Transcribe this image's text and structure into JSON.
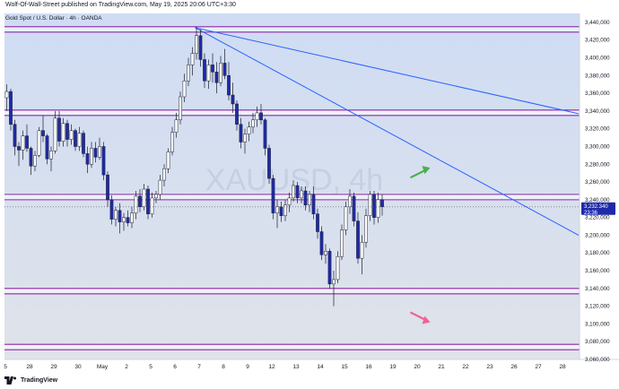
{
  "header": {
    "published_line": "Wolf-Of-Wall-Street published on TradingView.com, May 19, 2025 20:06 UTC+3:30",
    "symbol_line": "Gold Spot / U.S. Dollar · 4h · OANDA"
  },
  "watermark": "XAUUSD, 4h",
  "footer": {
    "brand": "TradingView",
    "logo_icon": "tradingview-logo-icon"
  },
  "price_label": {
    "value": "3,232.340",
    "countdown": "23:36"
  },
  "colors": {
    "background_top": "#cfdcf3",
    "background_bottom": "#dfe3ea",
    "up_candle": "#ffffff",
    "down_candle": "#1f2aa8",
    "wick": "#1b1f2e",
    "level_line": "#8e24aa",
    "trend_line": "#2962ff",
    "up_arrow": "#4caf50",
    "down_arrow": "#f06292"
  },
  "chart_data": {
    "type": "candlestick",
    "title": "",
    "ylim": [
      3060,
      3450
    ],
    "y_ticks": [
      "3,440,000",
      "3,420,000",
      "3,400,000",
      "3,380,000",
      "3,360,000",
      "3,340,000",
      "3,320,000",
      "3,300,000",
      "3,280,000",
      "3,260,000",
      "3,240,000",
      "3,220,000",
      "3,200,000",
      "3,180,000",
      "3,160,000",
      "3,140,000",
      "3,120,000",
      "3,100,000",
      "3,080,000",
      "3,060,000"
    ],
    "y_tick_values": [
      3440,
      3420,
      3400,
      3380,
      3360,
      3340,
      3320,
      3300,
      3280,
      3260,
      3240,
      3220,
      3200,
      3180,
      3160,
      3140,
      3120,
      3100,
      3080,
      3060
    ],
    "x_ticks": [
      "5",
      "28",
      "29",
      "30",
      "May",
      "2",
      "5",
      "6",
      "7",
      "8",
      "9",
      "12",
      "13",
      "14",
      "15",
      "16",
      "19",
      "20",
      "21",
      "22",
      "23",
      "26",
      "27",
      "28"
    ],
    "x_tick_slots": [
      0,
      6,
      12,
      18,
      24,
      30,
      36,
      42,
      48,
      54,
      60,
      66,
      72,
      78,
      84,
      90,
      96,
      102,
      108,
      114,
      120,
      126,
      132,
      138
    ],
    "horizontal_levels": [
      3432,
      3338,
      3243,
      3137,
      3074
    ],
    "trend_lines": [
      {
        "from": {
          "slot": 47,
          "price": 3434
        },
        "to": {
          "slot": 142,
          "price": 3337
        }
      },
      {
        "from": {
          "slot": 47,
          "price": 3434
        },
        "to": {
          "slot": 142,
          "price": 3200
        }
      }
    ],
    "arrows": [
      {
        "direction": "up",
        "slot": 103,
        "price": 3272
      },
      {
        "direction": "down",
        "slot": 103,
        "price": 3107
      }
    ],
    "candles": [
      {
        "o": 3355,
        "h": 3370,
        "l": 3340,
        "c": 3362
      },
      {
        "o": 3362,
        "h": 3365,
        "l": 3318,
        "c": 3325
      },
      {
        "o": 3325,
        "h": 3330,
        "l": 3290,
        "c": 3300
      },
      {
        "o": 3300,
        "h": 3305,
        "l": 3278,
        "c": 3296
      },
      {
        "o": 3296,
        "h": 3318,
        "l": 3285,
        "c": 3312
      },
      {
        "o": 3312,
        "h": 3325,
        "l": 3294,
        "c": 3298
      },
      {
        "o": 3298,
        "h": 3300,
        "l": 3268,
        "c": 3278
      },
      {
        "o": 3278,
        "h": 3295,
        "l": 3272,
        "c": 3290
      },
      {
        "o": 3290,
        "h": 3322,
        "l": 3288,
        "c": 3318
      },
      {
        "o": 3318,
        "h": 3335,
        "l": 3305,
        "c": 3312
      },
      {
        "o": 3312,
        "h": 3314,
        "l": 3280,
        "c": 3286
      },
      {
        "o": 3286,
        "h": 3300,
        "l": 3272,
        "c": 3295
      },
      {
        "o": 3295,
        "h": 3340,
        "l": 3292,
        "c": 3332
      },
      {
        "o": 3332,
        "h": 3340,
        "l": 3300,
        "c": 3306
      },
      {
        "o": 3306,
        "h": 3332,
        "l": 3300,
        "c": 3326
      },
      {
        "o": 3326,
        "h": 3330,
        "l": 3300,
        "c": 3308
      },
      {
        "o": 3308,
        "h": 3325,
        "l": 3302,
        "c": 3318
      },
      {
        "o": 3318,
        "h": 3320,
        "l": 3295,
        "c": 3300
      },
      {
        "o": 3300,
        "h": 3322,
        "l": 3295,
        "c": 3315
      },
      {
        "o": 3315,
        "h": 3318,
        "l": 3288,
        "c": 3292
      },
      {
        "o": 3292,
        "h": 3300,
        "l": 3270,
        "c": 3280
      },
      {
        "o": 3280,
        "h": 3305,
        "l": 3276,
        "c": 3298
      },
      {
        "o": 3298,
        "h": 3305,
        "l": 3282,
        "c": 3288
      },
      {
        "o": 3288,
        "h": 3310,
        "l": 3285,
        "c": 3300
      },
      {
        "o": 3300,
        "h": 3305,
        "l": 3262,
        "c": 3268
      },
      {
        "o": 3268,
        "h": 3272,
        "l": 3232,
        "c": 3240
      },
      {
        "o": 3240,
        "h": 3245,
        "l": 3212,
        "c": 3218
      },
      {
        "o": 3218,
        "h": 3232,
        "l": 3210,
        "c": 3228
      },
      {
        "o": 3228,
        "h": 3236,
        "l": 3202,
        "c": 3215
      },
      {
        "o": 3215,
        "h": 3225,
        "l": 3205,
        "c": 3220
      },
      {
        "o": 3220,
        "h": 3228,
        "l": 3210,
        "c": 3214
      },
      {
        "o": 3214,
        "h": 3232,
        "l": 3208,
        "c": 3225
      },
      {
        "o": 3225,
        "h": 3250,
        "l": 3218,
        "c": 3244
      },
      {
        "o": 3244,
        "h": 3252,
        "l": 3226,
        "c": 3232
      },
      {
        "o": 3232,
        "h": 3258,
        "l": 3228,
        "c": 3252
      },
      {
        "o": 3252,
        "h": 3256,
        "l": 3218,
        "c": 3224
      },
      {
        "o": 3224,
        "h": 3248,
        "l": 3220,
        "c": 3242
      },
      {
        "o": 3242,
        "h": 3250,
        "l": 3236,
        "c": 3246
      },
      {
        "o": 3246,
        "h": 3268,
        "l": 3240,
        "c": 3262
      },
      {
        "o": 3262,
        "h": 3280,
        "l": 3255,
        "c": 3275
      },
      {
        "o": 3275,
        "h": 3298,
        "l": 3270,
        "c": 3294
      },
      {
        "o": 3294,
        "h": 3322,
        "l": 3290,
        "c": 3316
      },
      {
        "o": 3316,
        "h": 3338,
        "l": 3310,
        "c": 3330
      },
      {
        "o": 3330,
        "h": 3362,
        "l": 3325,
        "c": 3356
      },
      {
        "o": 3356,
        "h": 3382,
        "l": 3350,
        "c": 3374
      },
      {
        "o": 3374,
        "h": 3400,
        "l": 3368,
        "c": 3392
      },
      {
        "o": 3392,
        "h": 3412,
        "l": 3380,
        "c": 3405
      },
      {
        "o": 3405,
        "h": 3435,
        "l": 3398,
        "c": 3425
      },
      {
        "o": 3425,
        "h": 3432,
        "l": 3390,
        "c": 3398
      },
      {
        "o": 3398,
        "h": 3405,
        "l": 3366,
        "c": 3374
      },
      {
        "o": 3374,
        "h": 3398,
        "l": 3365,
        "c": 3392
      },
      {
        "o": 3392,
        "h": 3405,
        "l": 3372,
        "c": 3384
      },
      {
        "o": 3384,
        "h": 3395,
        "l": 3360,
        "c": 3372
      },
      {
        "o": 3372,
        "h": 3402,
        "l": 3368,
        "c": 3394
      },
      {
        "o": 3394,
        "h": 3410,
        "l": 3376,
        "c": 3380
      },
      {
        "o": 3380,
        "h": 3395,
        "l": 3352,
        "c": 3358
      },
      {
        "o": 3358,
        "h": 3372,
        "l": 3338,
        "c": 3348
      },
      {
        "o": 3348,
        "h": 3352,
        "l": 3318,
        "c": 3325
      },
      {
        "o": 3325,
        "h": 3332,
        "l": 3298,
        "c": 3305
      },
      {
        "o": 3305,
        "h": 3320,
        "l": 3292,
        "c": 3314
      },
      {
        "o": 3314,
        "h": 3328,
        "l": 3306,
        "c": 3322
      },
      {
        "o": 3322,
        "h": 3338,
        "l": 3315,
        "c": 3330
      },
      {
        "o": 3330,
        "h": 3345,
        "l": 3322,
        "c": 3338
      },
      {
        "o": 3338,
        "h": 3348,
        "l": 3325,
        "c": 3330
      },
      {
        "o": 3330,
        "h": 3332,
        "l": 3290,
        "c": 3298
      },
      {
        "o": 3298,
        "h": 3302,
        "l": 3258,
        "c": 3264
      },
      {
        "o": 3264,
        "h": 3268,
        "l": 3218,
        "c": 3225
      },
      {
        "o": 3225,
        "h": 3240,
        "l": 3208,
        "c": 3232
      },
      {
        "o": 3232,
        "h": 3238,
        "l": 3215,
        "c": 3222
      },
      {
        "o": 3222,
        "h": 3240,
        "l": 3216,
        "c": 3234
      },
      {
        "o": 3234,
        "h": 3248,
        "l": 3226,
        "c": 3242
      },
      {
        "o": 3242,
        "h": 3262,
        "l": 3238,
        "c": 3256
      },
      {
        "o": 3256,
        "h": 3260,
        "l": 3236,
        "c": 3242
      },
      {
        "o": 3242,
        "h": 3255,
        "l": 3236,
        "c": 3250
      },
      {
        "o": 3250,
        "h": 3255,
        "l": 3228,
        "c": 3234
      },
      {
        "o": 3234,
        "h": 3250,
        "l": 3226,
        "c": 3246
      },
      {
        "o": 3246,
        "h": 3255,
        "l": 3218,
        "c": 3224
      },
      {
        "o": 3224,
        "h": 3230,
        "l": 3196,
        "c": 3204
      },
      {
        "o": 3204,
        "h": 3210,
        "l": 3172,
        "c": 3178
      },
      {
        "o": 3178,
        "h": 3190,
        "l": 3168,
        "c": 3182
      },
      {
        "o": 3182,
        "h": 3185,
        "l": 3140,
        "c": 3145
      },
      {
        "o": 3145,
        "h": 3160,
        "l": 3120,
        "c": 3150
      },
      {
        "o": 3150,
        "h": 3182,
        "l": 3146,
        "c": 3176
      },
      {
        "o": 3176,
        "h": 3212,
        "l": 3172,
        "c": 3206
      },
      {
        "o": 3206,
        "h": 3238,
        "l": 3200,
        "c": 3232
      },
      {
        "o": 3232,
        "h": 3252,
        "l": 3224,
        "c": 3244
      },
      {
        "o": 3244,
        "h": 3248,
        "l": 3210,
        "c": 3216
      },
      {
        "o": 3216,
        "h": 3226,
        "l": 3168,
        "c": 3174
      },
      {
        "o": 3174,
        "h": 3200,
        "l": 3156,
        "c": 3192
      },
      {
        "o": 3192,
        "h": 3230,
        "l": 3186,
        "c": 3222
      },
      {
        "o": 3222,
        "h": 3250,
        "l": 3216,
        "c": 3246
      },
      {
        "o": 3246,
        "h": 3250,
        "l": 3212,
        "c": 3220
      },
      {
        "o": 3220,
        "h": 3248,
        "l": 3214,
        "c": 3240
      },
      {
        "o": 3240,
        "h": 3246,
        "l": 3222,
        "c": 3232
      }
    ]
  }
}
